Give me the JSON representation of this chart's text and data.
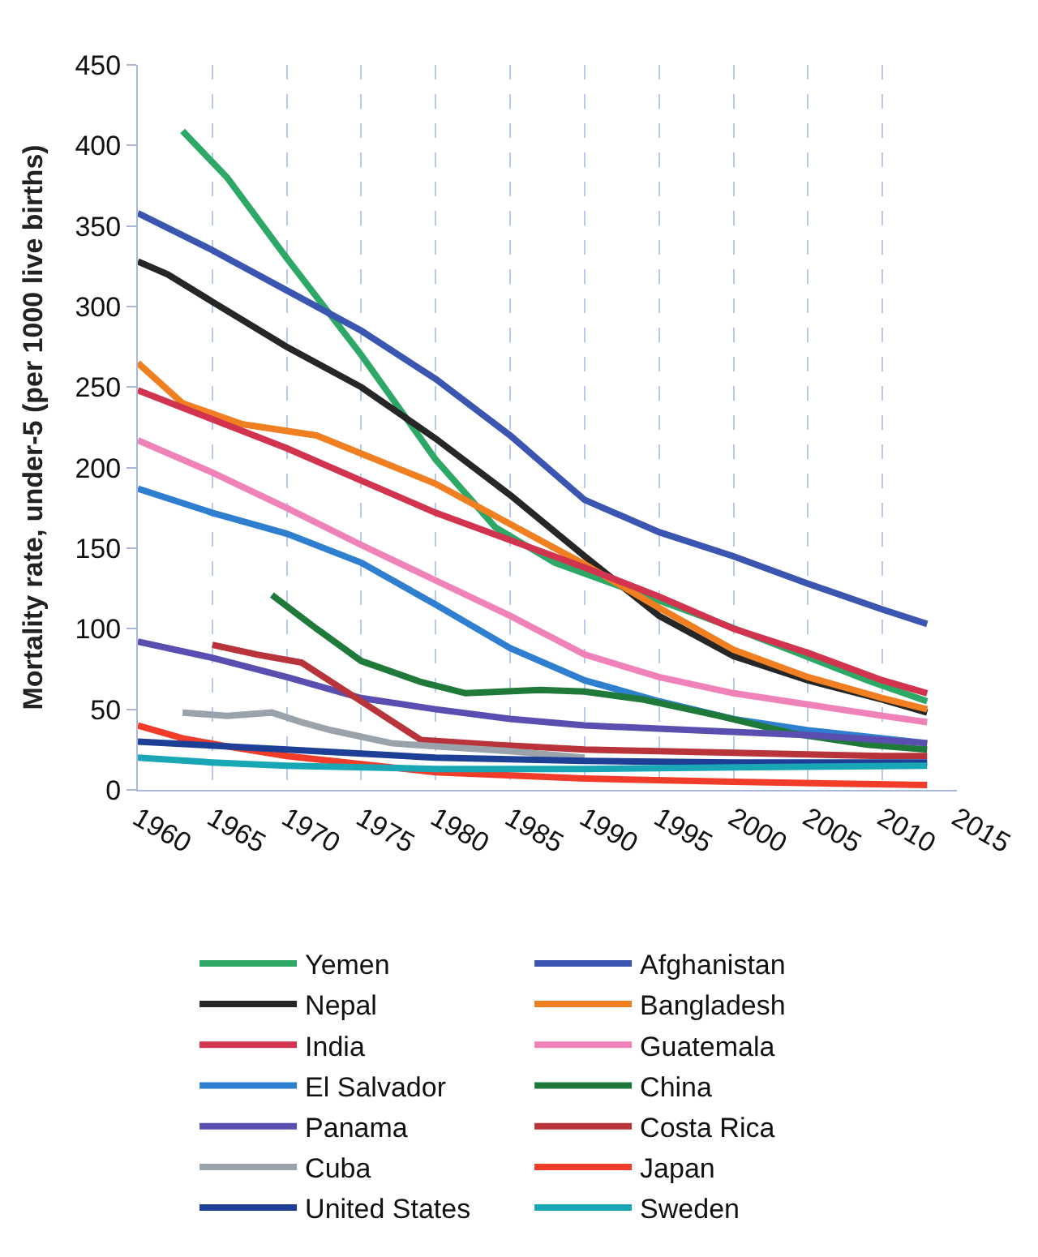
{
  "chart_data": {
    "type": "line",
    "ylabel": "Mortality rate, under-5 (per 1000 live births)",
    "xlim": [
      1960,
      2015
    ],
    "xticks": [
      1960,
      1965,
      1970,
      1975,
      1980,
      1985,
      1990,
      1995,
      2000,
      2005,
      2010,
      2015
    ],
    "ylim": [
      0,
      450
    ],
    "yticks": [
      0,
      50,
      100,
      150,
      200,
      250,
      300,
      350,
      400,
      450
    ],
    "grid": "x",
    "legend": "bottom",
    "marker": "none",
    "line_style": "solid",
    "series": [
      {
        "name": "Yemen",
        "color": "#2ea866",
        "x": [
          1963,
          1966,
          1970,
          1975,
          1980,
          1984,
          1988,
          1994,
          1999,
          2004,
          2009,
          2013
        ],
        "values": [
          409,
          380,
          330,
          270,
          205,
          163,
          141,
          121,
          104,
          86,
          68,
          55
        ]
      },
      {
        "name": "Afghanistan",
        "color": "#3b56b0",
        "x": [
          1960,
          1965,
          1970,
          1975,
          1980,
          1985,
          1990,
          1995,
          2000,
          2005,
          2010,
          2013
        ],
        "values": [
          358,
          335,
          310,
          285,
          255,
          220,
          180,
          160,
          145,
          128,
          112,
          103
        ]
      },
      {
        "name": "Nepal",
        "color": "#262626",
        "x": [
          1960,
          1962,
          1965,
          1970,
          1975,
          1980,
          1985,
          1990,
          1995,
          2000,
          2005,
          2010,
          2013
        ],
        "values": [
          328,
          320,
          303,
          275,
          250,
          218,
          183,
          145,
          108,
          83,
          68,
          56,
          48
        ]
      },
      {
        "name": "Bangladesh",
        "color": "#f07f22",
        "x": [
          1960,
          1963,
          1967,
          1972,
          1976,
          1980,
          1985,
          1990,
          1995,
          2000,
          2005,
          2010,
          2013
        ],
        "values": [
          265,
          240,
          227,
          220,
          205,
          190,
          165,
          140,
          113,
          87,
          70,
          57,
          50
        ]
      },
      {
        "name": "India",
        "color": "#d2344f",
        "x": [
          1960,
          1965,
          1970,
          1975,
          1980,
          1985,
          1990,
          1995,
          2000,
          2005,
          2010,
          2013
        ],
        "values": [
          248,
          230,
          212,
          192,
          172,
          155,
          138,
          120,
          100,
          85,
          68,
          60
        ]
      },
      {
        "name": "Guatemala",
        "color": "#ef82b8",
        "x": [
          1960,
          1965,
          1970,
          1975,
          1980,
          1985,
          1990,
          1995,
          2000,
          2005,
          2010,
          2013
        ],
        "values": [
          217,
          197,
          175,
          152,
          130,
          108,
          84,
          70,
          60,
          53,
          46,
          42
        ]
      },
      {
        "name": "El Salvador",
        "color": "#2f7fd0",
        "x": [
          1960,
          1965,
          1970,
          1975,
          1980,
          1985,
          1990,
          1995,
          2000,
          2005,
          2010,
          2013
        ],
        "values": [
          187,
          172,
          159,
          141,
          115,
          88,
          68,
          55,
          44,
          37,
          32,
          29
        ]
      },
      {
        "name": "China",
        "color": "#1f7a3a",
        "x": [
          1969,
          1972,
          1975,
          1979,
          1982,
          1987,
          1990,
          1994,
          1999,
          2004,
          2009,
          2013
        ],
        "values": [
          121,
          100,
          80,
          67,
          60,
          62,
          61,
          56,
          46,
          35,
          28,
          25
        ]
      },
      {
        "name": "Panama",
        "color": "#5a4fb0",
        "x": [
          1960,
          1965,
          1970,
          1975,
          1980,
          1985,
          1990,
          1995,
          2000,
          2005,
          2010,
          2013
        ],
        "values": [
          92,
          82,
          70,
          57,
          50,
          44,
          40,
          38,
          36,
          34,
          31,
          29
        ]
      },
      {
        "name": "Costa Rica",
        "color": "#b8343a",
        "x": [
          1965,
          1968,
          1971,
          1975,
          1979,
          1984,
          1990,
          1995,
          2000,
          2005,
          2010,
          2013
        ],
        "values": [
          90,
          84,
          79,
          55,
          31,
          28,
          25,
          24,
          23,
          22,
          21,
          21
        ]
      },
      {
        "name": "Cuba",
        "color": "#9aa3ab",
        "x": [
          1963,
          1966,
          1969,
          1971,
          1973,
          1977,
          1980,
          1985,
          1990
        ],
        "values": [
          48,
          46,
          48,
          42,
          37,
          29,
          27,
          24,
          20
        ]
      },
      {
        "name": "Japan",
        "color": "#f03c28",
        "x": [
          1960,
          1963,
          1966,
          1970,
          1975,
          1980,
          1990,
          2000,
          2013
        ],
        "values": [
          40,
          32,
          27,
          21,
          16,
          11,
          7,
          5,
          3
        ]
      },
      {
        "name": "United States",
        "color": "#1e3f96",
        "x": [
          1960,
          1970,
          1980,
          1990,
          2000,
          2013
        ],
        "values": [
          30,
          25,
          20,
          18,
          17,
          17
        ]
      },
      {
        "name": "Sweden",
        "color": "#19a6b5",
        "x": [
          1960,
          1965,
          1970,
          1980,
          1990,
          2000,
          2013
        ],
        "values": [
          20,
          17,
          15,
          13,
          13,
          14,
          15
        ]
      }
    ]
  }
}
